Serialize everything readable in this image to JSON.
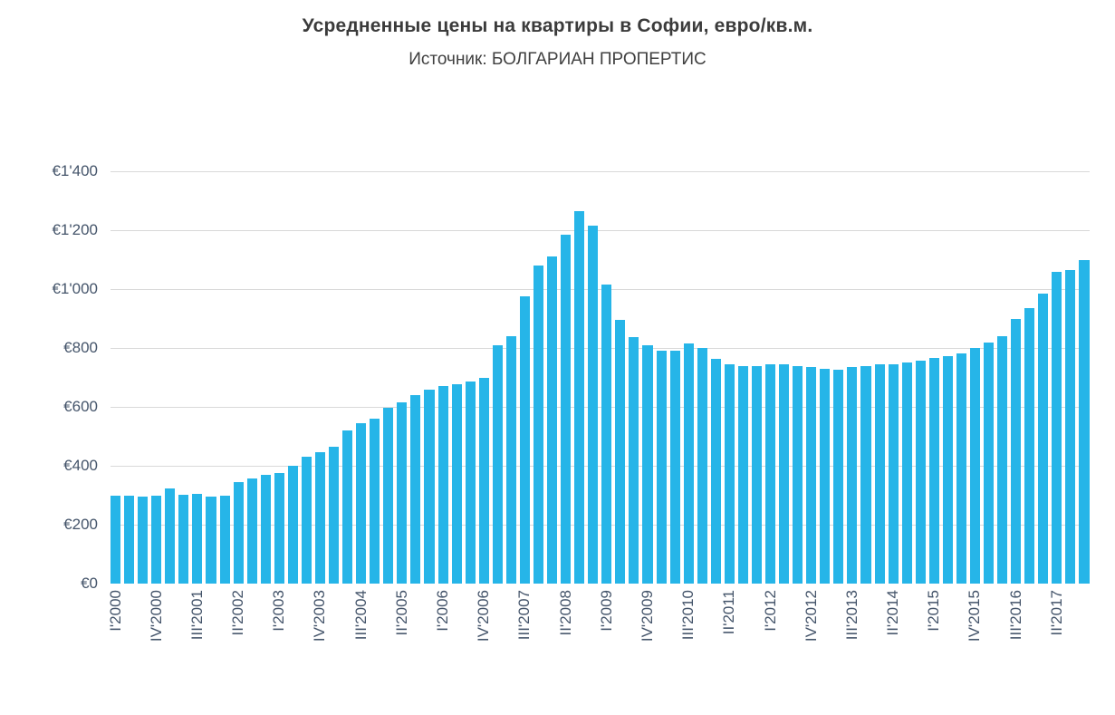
{
  "header": {
    "title": "Усредненные цены на квартиры в Софии, евро/кв.м.",
    "subtitle": "Источник: БОЛГАРИАН ПРОПЕРТИС"
  },
  "chart_data": {
    "type": "bar",
    "title": "Усредненные цены на квартиры в Софии, евро/кв.м.",
    "subtitle": "Источник: БОЛГАРИАН ПРОПЕРТИС",
    "unit": "евро/кв.м.",
    "bar_color": "#26b5e8",
    "grid_color": "#d9d9d9",
    "axis_label_color": "#44546a",
    "legend": "none",
    "grid": "horizontal",
    "ylim": [
      0,
      1400
    ],
    "y_tick_values": [
      0,
      200,
      400,
      600,
      800,
      1000,
      1200,
      1400
    ],
    "y_ticks": [
      "€0",
      "€200",
      "€400",
      "€600",
      "€800",
      "€1'000",
      "€1'200",
      "€1'400"
    ],
    "x_label_every": 3,
    "x_label_rotation": -90,
    "categories": [
      "I'2000",
      "II'2000",
      "III'2000",
      "IV'2000",
      "I'2001",
      "II'2001",
      "III'2001",
      "IV'2001",
      "I'2002",
      "II'2002",
      "III'2002",
      "IV'2002",
      "I'2003",
      "II'2003",
      "III'2003",
      "IV'2003",
      "I'2004",
      "II'2004",
      "III'2004",
      "IV'2004",
      "I'2005",
      "II'2005",
      "III'2005",
      "IV'2005",
      "I'2006",
      "II'2006",
      "III'2006",
      "IV'2006",
      "I'2007",
      "II'2007",
      "III'2007",
      "IV'2007",
      "I'2008",
      "II'2008",
      "III'2008",
      "IV'2008",
      "I'2009",
      "II'2009",
      "III'2009",
      "IV'2009",
      "I'2010",
      "II'2010",
      "III'2010",
      "IV'2010",
      "I'2011",
      "II'2011",
      "III'2011",
      "IV'2011",
      "I'2012",
      "II'2012",
      "III'2012",
      "IV'2012",
      "I'2013",
      "II'2013",
      "III'2013",
      "IV'2013",
      "I'2014",
      "II'2014",
      "III'2014",
      "IV'2014",
      "I'2015",
      "II'2015",
      "III'2015",
      "IV'2015",
      "I'2016",
      "II'2016",
      "III'2016",
      "IV'2016",
      "I'2017",
      "II'2017",
      "III'2017",
      "IV'2017"
    ],
    "values": [
      297,
      300,
      296,
      300,
      322,
      301,
      305,
      296,
      299,
      345,
      357,
      370,
      374,
      400,
      430,
      446,
      465,
      520,
      545,
      560,
      596,
      615,
      640,
      657,
      670,
      676,
      686,
      700,
      810,
      841,
      975,
      1080,
      1110,
      1184,
      1266,
      1216,
      1014,
      895,
      838,
      810,
      790,
      790,
      815,
      800,
      763,
      745,
      740,
      738,
      744,
      746,
      740,
      736,
      730,
      726,
      735,
      740,
      745,
      746,
      750,
      756,
      765,
      772,
      782,
      800,
      820,
      840,
      900,
      935,
      985,
      1060,
      1065,
      1098
    ]
  }
}
